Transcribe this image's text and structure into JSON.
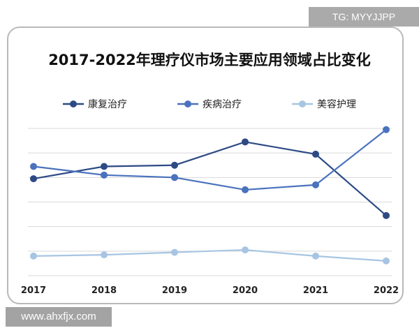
{
  "watermarks": {
    "top_right": "TG: MYYJJPP",
    "bottom_left": "www.ahxfjx.com"
  },
  "colors": {
    "series1": "#2d4a85",
    "series2": "#4a72bd",
    "series3": "#a7c5e3",
    "grid": "#d9d9d9"
  },
  "chart_data": {
    "type": "line",
    "title": "2017-2022年理疗仪市场主要应用领域占比变化",
    "categories": [
      "2017",
      "2018",
      "2019",
      "2020",
      "2021",
      "2022"
    ],
    "ylim": [
      0,
      60
    ],
    "grid": true,
    "legend_position": "top",
    "series": [
      {
        "name": "康复治疗",
        "values": [
          39.5,
          44.5,
          45.0,
          54.5,
          49.5,
          24.5
        ]
      },
      {
        "name": "疾病治疗",
        "values": [
          44.5,
          41.0,
          40.0,
          35.0,
          37.0,
          59.5
        ]
      },
      {
        "name": "美容护理",
        "values": [
          8.0,
          8.5,
          9.5,
          10.5,
          8.0,
          6.0
        ]
      }
    ]
  }
}
